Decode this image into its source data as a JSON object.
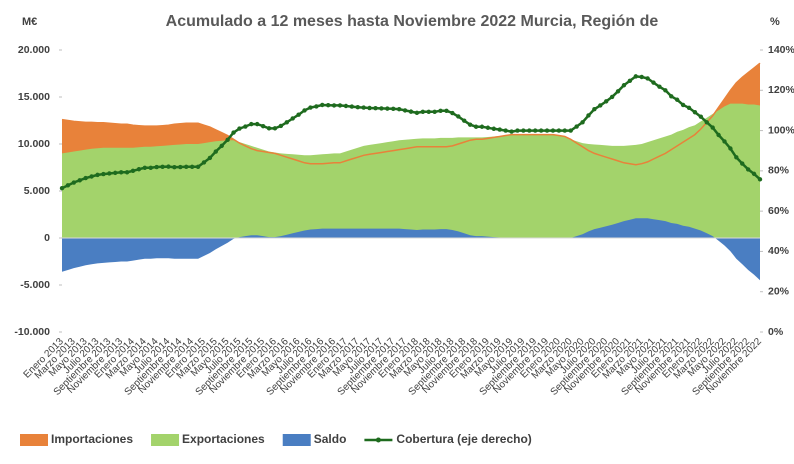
{
  "chart_data": {
    "type": "area_line",
    "title": "Acumulado a 12 meses hasta Noviembre 2022 Murcia, Región de",
    "y_label": "M€",
    "y2_label": "%",
    "categories": [
      "Enero 2013",
      null,
      "Marzo 2013",
      null,
      "Mayo 2013",
      null,
      "Julio 2013",
      null,
      "Septiembre 2013",
      null,
      "Noviembre 2013",
      null,
      "Enero 2014",
      null,
      "Marzo 2014",
      null,
      "Mayo 2014",
      null,
      "Julio 2014",
      null,
      "Septiembre 2014",
      null,
      "Noviembre 2014",
      null,
      "Enero 2015",
      null,
      "Marzo 2015",
      null,
      "Mayo 2015",
      null,
      "Julio 2015",
      null,
      "Septiembre 2015",
      null,
      "Noviembre 2015",
      null,
      "Enero 2016",
      null,
      "Marzo 2016",
      null,
      "Mayo 2016",
      null,
      "Julio 2016",
      null,
      "Septiembre 2016",
      null,
      "Noviembre 2016",
      null,
      "Enero 2017",
      null,
      "Marzo 2017",
      null,
      "Mayo 2017",
      null,
      "Julio 2017",
      null,
      "Septiembre 2017",
      null,
      "Noviembre 2017",
      null,
      "Enero 2018",
      null,
      "Marzo 2018",
      null,
      "Mayo 2018",
      null,
      "Julio 2018",
      null,
      "Septiembre 2018",
      null,
      "Noviembre 2018",
      null,
      "Enero 2019",
      null,
      "Marzo 2019",
      null,
      "Mayo 2019",
      null,
      "Julio 2019",
      null,
      "Septiembre 2019",
      null,
      "Noviembre 2019",
      null,
      "Enero 2020",
      null,
      "Marzo 2020",
      null,
      "Mayo 2020",
      null,
      "Julio 2020",
      null,
      "Septiembre 2020",
      null,
      "Noviembre 2020",
      null,
      "Enero 2021",
      null,
      "Marzo 2021",
      null,
      "Mayo 2021",
      null,
      "Julio 2021",
      null,
      "Septiembre 2021",
      null,
      "Noviembre 2021",
      null,
      "Enero 2022",
      null,
      "Marzo 2022",
      null,
      "Mayo 2022",
      null,
      "Julio 2022",
      null,
      "Septiembre 2022",
      null,
      "Noviembre 2022"
    ],
    "series": [
      {
        "name": "Importaciones",
        "color": "#e8823a",
        "kind": "area",
        "values": [
          12600,
          12500,
          12400,
          12350,
          12300,
          12300,
          12250,
          12250,
          12200,
          12150,
          12100,
          12100,
          12000,
          11950,
          11900,
          11900,
          11900,
          11950,
          12000,
          12100,
          12150,
          12200,
          12200,
          12200,
          12000,
          11800,
          11500,
          11200,
          10900,
          10500,
          10100,
          9800,
          9500,
          9300,
          9200,
          9100,
          9000,
          8800,
          8600,
          8400,
          8200,
          8000,
          7900,
          7900,
          7900,
          7950,
          8000,
          8000,
          8200,
          8400,
          8600,
          8800,
          8900,
          9000,
          9100,
          9200,
          9300,
          9400,
          9500,
          9600,
          9700,
          9700,
          9700,
          9700,
          9700,
          9700,
          9800,
          10000,
          10200,
          10400,
          10500,
          10500,
          10600,
          10700,
          10800,
          10900,
          11000,
          11000,
          11000,
          11000,
          11000,
          11000,
          11000,
          11000,
          10900,
          10800,
          10500,
          10100,
          9700,
          9300,
          9000,
          8800,
          8600,
          8400,
          8200,
          8000,
          7900,
          7800,
          7900,
          8100,
          8400,
          8700,
          9000,
          9400,
          9800,
          10200,
          10600,
          11000,
          11600,
          12300,
          13000,
          13900,
          14800,
          15700,
          16500,
          17100,
          17600,
          18100,
          18600
        ]
      },
      {
        "name": "Exportaciones",
        "color": "#a3d36b",
        "kind": "area",
        "values": [
          9000,
          9100,
          9200,
          9300,
          9400,
          9500,
          9550,
          9600,
          9600,
          9600,
          9600,
          9600,
          9600,
          9650,
          9700,
          9700,
          9750,
          9800,
          9850,
          9900,
          9950,
          10000,
          10000,
          10000,
          10100,
          10200,
          10300,
          10350,
          10400,
          10400,
          10200,
          10000,
          9800,
          9600,
          9400,
          9200,
          9100,
          9000,
          8950,
          8900,
          8850,
          8800,
          8800,
          8850,
          8900,
          8950,
          9000,
          9000,
          9200,
          9400,
          9600,
          9800,
          9900,
          10000,
          10100,
          10200,
          10300,
          10400,
          10450,
          10500,
          10550,
          10600,
          10600,
          10600,
          10650,
          10650,
          10650,
          10700,
          10700,
          10700,
          10700,
          10700,
          10750,
          10800,
          10850,
          10900,
          10950,
          11000,
          11000,
          11000,
          11000,
          11000,
          11000,
          11000,
          10900,
          10800,
          10500,
          10300,
          10100,
          10000,
          9950,
          9900,
          9850,
          9800,
          9800,
          9800,
          9850,
          9900,
          10000,
          10200,
          10400,
          10600,
          10800,
          11000,
          11300,
          11500,
          11800,
          12000,
          12400,
          12800,
          13200,
          13600,
          14000,
          14300,
          14300,
          14300,
          14200,
          14200,
          14100
        ]
      },
      {
        "name": "Saldo",
        "color": "#4a7ec2",
        "kind": "area",
        "values": [
          -3600,
          -3400,
          -3200,
          -3050,
          -2900,
          -2800,
          -2700,
          -2650,
          -2600,
          -2550,
          -2500,
          -2500,
          -2400,
          -2300,
          -2200,
          -2200,
          -2150,
          -2150,
          -2150,
          -2200,
          -2200,
          -2200,
          -2200,
          -2200,
          -1900,
          -1600,
          -1200,
          -850,
          -500,
          -100,
          100,
          200,
          300,
          300,
          200,
          100,
          100,
          200,
          350,
          500,
          650,
          800,
          900,
          950,
          1000,
          1000,
          1000,
          1000,
          1000,
          1000,
          1000,
          1000,
          1000,
          1000,
          1000,
          1000,
          1000,
          1000,
          950,
          900,
          850,
          900,
          900,
          900,
          950,
          950,
          850,
          700,
          500,
          300,
          200,
          200,
          150,
          100,
          50,
          0,
          -50,
          0,
          0,
          0,
          0,
          0,
          0,
          0,
          0,
          0,
          0,
          200,
          400,
          700,
          950,
          1100,
          1250,
          1400,
          1600,
          1800,
          1950,
          2100,
          2100,
          2100,
          2000,
          1900,
          1800,
          1600,
          1500,
          1300,
          1200,
          1000,
          800,
          500,
          200,
          -300,
          -800,
          -1400,
          -2200,
          -2800,
          -3400,
          -3900,
          -4500
        ]
      },
      {
        "name": "Cobertura (eje derecho)",
        "color": "#1e6b1e",
        "kind": "line",
        "axis": "y2",
        "values": [
          71.4,
          72.8,
          74.2,
          75.3,
          76.4,
          77.2,
          78.0,
          78.4,
          78.7,
          79.0,
          79.3,
          79.3,
          80.0,
          80.8,
          81.5,
          81.5,
          81.9,
          82.0,
          82.1,
          81.8,
          81.9,
          82.0,
          82.0,
          82.0,
          84.2,
          86.4,
          89.6,
          92.4,
          95.4,
          99.0,
          101.0,
          102.0,
          103.2,
          103.2,
          102.2,
          101.1,
          101.1,
          102.3,
          104.1,
          106.0,
          107.9,
          110.0,
          111.4,
          112.0,
          112.7,
          112.6,
          112.5,
          112.5,
          112.2,
          111.9,
          111.6,
          111.4,
          111.2,
          111.1,
          111.0,
          110.9,
          110.8,
          110.6,
          110.0,
          109.4,
          108.8,
          109.3,
          109.3,
          109.3,
          109.8,
          109.8,
          108.7,
          107.0,
          104.9,
          102.9,
          101.9,
          101.9,
          101.4,
          100.9,
          100.5,
          100,
          99.5,
          100,
          100,
          100,
          100,
          100,
          100,
          100,
          100,
          100,
          100,
          102.0,
          104.1,
          107.5,
          110.6,
          112.5,
          114.5,
          116.7,
          119.5,
          122.5,
          124.7,
          126.9,
          126.6,
          125.9,
          123.8,
          121.8,
          120.0,
          117.0,
          115.3,
          112.7,
          111.3,
          109.1,
          106.9,
          104.1,
          101.5,
          97.8,
          94.6,
          91.1,
          86.7,
          83.6,
          80.7,
          78.5,
          75.8
        ]
      }
    ],
    "ylim": [
      -10000,
      20000
    ],
    "yticks": [
      {
        "value": -10000,
        "label": "-10.000"
      },
      {
        "value": -5000,
        "label": "-5.000"
      },
      0,
      {
        "value": 5000,
        "label": "5.000"
      },
      {
        "value": 10000,
        "label": "10.000"
      },
      {
        "value": 15000,
        "label": "15.000"
      },
      {
        "value": 20000,
        "label": "20.000"
      }
    ],
    "y2lim": [
      0,
      140
    ],
    "y2ticks": [
      {
        "value": 0,
        "label": "0%"
      },
      {
        "value": 20,
        "label": "20%"
      },
      {
        "value": 40,
        "label": "40%"
      },
      {
        "value": 60,
        "label": "60%"
      },
      {
        "value": 80,
        "label": "80%"
      },
      {
        "value": 100,
        "label": "100%"
      },
      {
        "value": 120,
        "label": "120%"
      },
      {
        "value": 140,
        "label": "140%"
      }
    ],
    "legend": "bottom"
  }
}
